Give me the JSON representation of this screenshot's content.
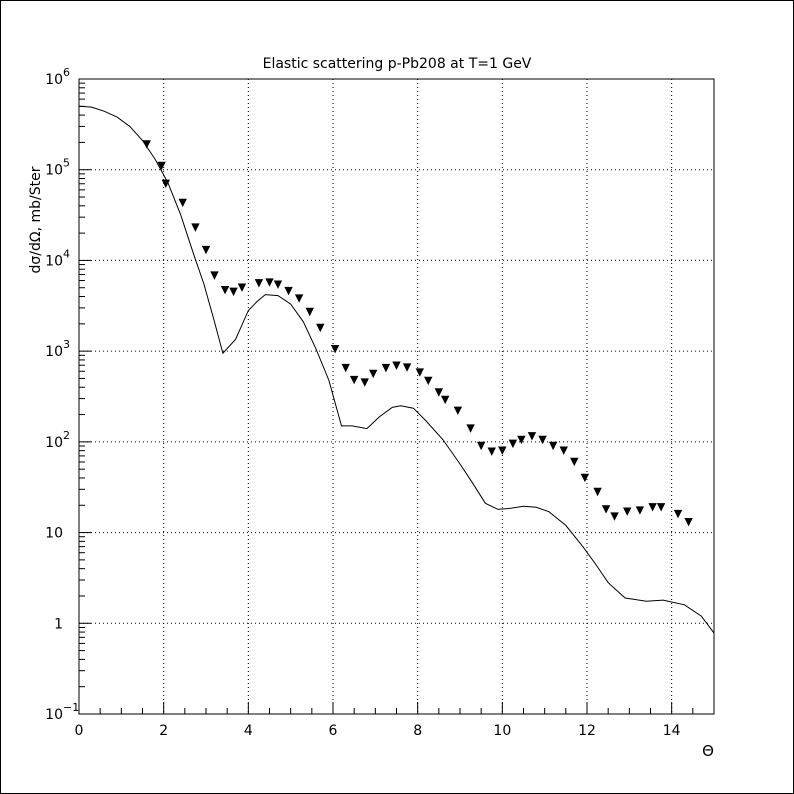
{
  "chart_data": {
    "type": "scatter",
    "title": "Elastic scattering p-Pb208 at T=1 GeV",
    "xlabel": "Θ",
    "ylabel": "dσ/dΩ, mb/Ster",
    "xlim": [
      0,
      15
    ],
    "ylim": [
      0.1,
      1000000
    ],
    "y_scale": "log",
    "grid": true,
    "x_ticks": [
      {
        "v": 0,
        "label": "0"
      },
      {
        "v": 2,
        "label": "2"
      },
      {
        "v": 4,
        "label": "4"
      },
      {
        "v": 6,
        "label": "6"
      },
      {
        "v": 8,
        "label": "8"
      },
      {
        "v": 10,
        "label": "10"
      },
      {
        "v": 12,
        "label": "12"
      },
      {
        "v": 14,
        "label": "14"
      }
    ],
    "y_ticks": [
      {
        "v": 0.1,
        "label": "10",
        "exp": "−1"
      },
      {
        "v": 1,
        "label": "1",
        "exp": ""
      },
      {
        "v": 10,
        "label": "10",
        "exp": ""
      },
      {
        "v": 100,
        "label": "10",
        "exp": "2"
      },
      {
        "v": 1000,
        "label": "10",
        "exp": "3"
      },
      {
        "v": 10000,
        "label": "10",
        "exp": "4"
      },
      {
        "v": 100000,
        "label": "10",
        "exp": "5"
      },
      {
        "v": 1000000,
        "label": "10",
        "exp": "6"
      }
    ],
    "series": [
      {
        "kind": "points",
        "marker": "down-triangle",
        "color": "#000000",
        "x": [
          1.6,
          1.95,
          2.05,
          2.45,
          2.75,
          3.0,
          3.2,
          3.45,
          3.65,
          3.85,
          4.25,
          4.5,
          4.7,
          4.95,
          5.2,
          5.45,
          5.7,
          6.05,
          6.3,
          6.5,
          6.75,
          6.95,
          7.25,
          7.5,
          7.75,
          8.05,
          8.25,
          8.5,
          8.65,
          8.95,
          9.25,
          9.5,
          9.75,
          10.0,
          10.25,
          10.45,
          10.7,
          10.95,
          11.2,
          11.45,
          11.7,
          11.95,
          12.25,
          12.45,
          12.65,
          12.95,
          13.25,
          13.55,
          13.75,
          14.15,
          14.4
        ],
        "y": [
          190000,
          110000,
          70000,
          43000,
          23000,
          13000,
          6800,
          4700,
          4500,
          5000,
          5600,
          5700,
          5400,
          4600,
          3800,
          2700,
          1800,
          1050,
          650,
          480,
          450,
          560,
          650,
          690,
          660,
          580,
          470,
          350,
          290,
          220,
          140,
          90,
          78,
          80,
          95,
          105,
          115,
          105,
          90,
          80,
          60,
          40,
          28,
          18,
          15,
          17,
          17.5,
          19,
          19,
          16,
          13
        ]
      },
      {
        "kind": "line",
        "color": "#000000",
        "x": [
          0,
          0.3,
          0.6,
          0.9,
          1.2,
          1.5,
          1.8,
          2.1,
          2.4,
          2.7,
          2.95,
          3.2,
          3.4,
          3.7,
          4.0,
          4.2,
          4.4,
          4.7,
          5.0,
          5.3,
          5.6,
          5.9,
          6.2,
          6.45,
          6.8,
          7.1,
          7.4,
          7.6,
          7.9,
          8.2,
          8.6,
          9.0,
          9.3,
          9.6,
          9.9,
          10.2,
          10.5,
          10.8,
          11.1,
          11.5,
          11.9,
          12.2,
          12.5,
          12.9,
          13.4,
          13.8,
          14.3,
          14.7,
          15.0
        ],
        "y": [
          500000,
          490000,
          440000,
          380000,
          300000,
          210000,
          130000,
          72000,
          32000,
          12000,
          5500,
          2100,
          950,
          1350,
          2800,
          3500,
          4200,
          4100,
          3300,
          2100,
          1050,
          480,
          150,
          150,
          140,
          190,
          240,
          250,
          235,
          170,
          105,
          57,
          35,
          21,
          18,
          18.5,
          19.5,
          19,
          17,
          12,
          7,
          4.5,
          2.8,
          1.9,
          1.75,
          1.8,
          1.6,
          1.2,
          0.78
        ]
      }
    ]
  }
}
